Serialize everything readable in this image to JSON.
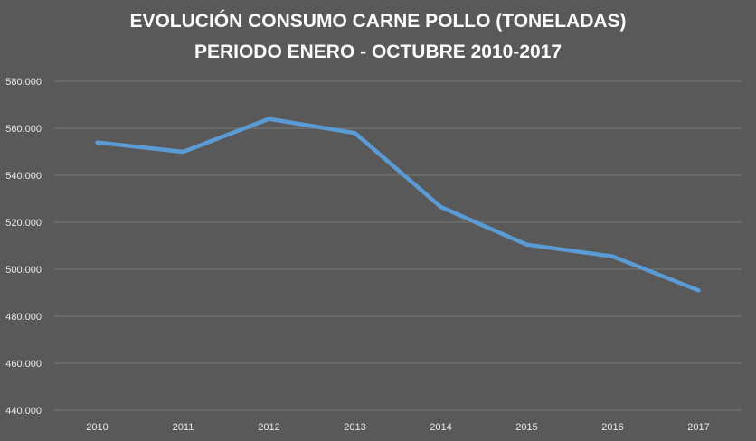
{
  "chart_data": {
    "type": "line",
    "title": "EVOLUCIÓN CONSUMO CARNE POLLO (TONELADAS)",
    "subtitle": "PERIODO ENERO - OCTUBRE 2010-2017",
    "xlabel": "",
    "ylabel": "",
    "categories": [
      "2010",
      "2011",
      "2012",
      "2013",
      "2014",
      "2015",
      "2016",
      "2017"
    ],
    "series": [
      {
        "values": [
          554000,
          550000,
          564000,
          558000,
          526500,
          510500,
          505500,
          491000
        ]
      }
    ],
    "ylim": [
      440000,
      580000
    ],
    "yticks": [
      440000,
      460000,
      480000,
      500000,
      520000,
      540000,
      560000,
      580000
    ],
    "ytick_labels": [
      "440.000",
      "460.000",
      "480.000",
      "500.000",
      "520.000",
      "540.000",
      "560.000",
      "580.000"
    ],
    "grid": true,
    "legend": "none",
    "colors": {
      "background": "#595959",
      "line": "#5b9bd5",
      "grid": "#7a7a7a",
      "text": "#ffffff"
    }
  }
}
